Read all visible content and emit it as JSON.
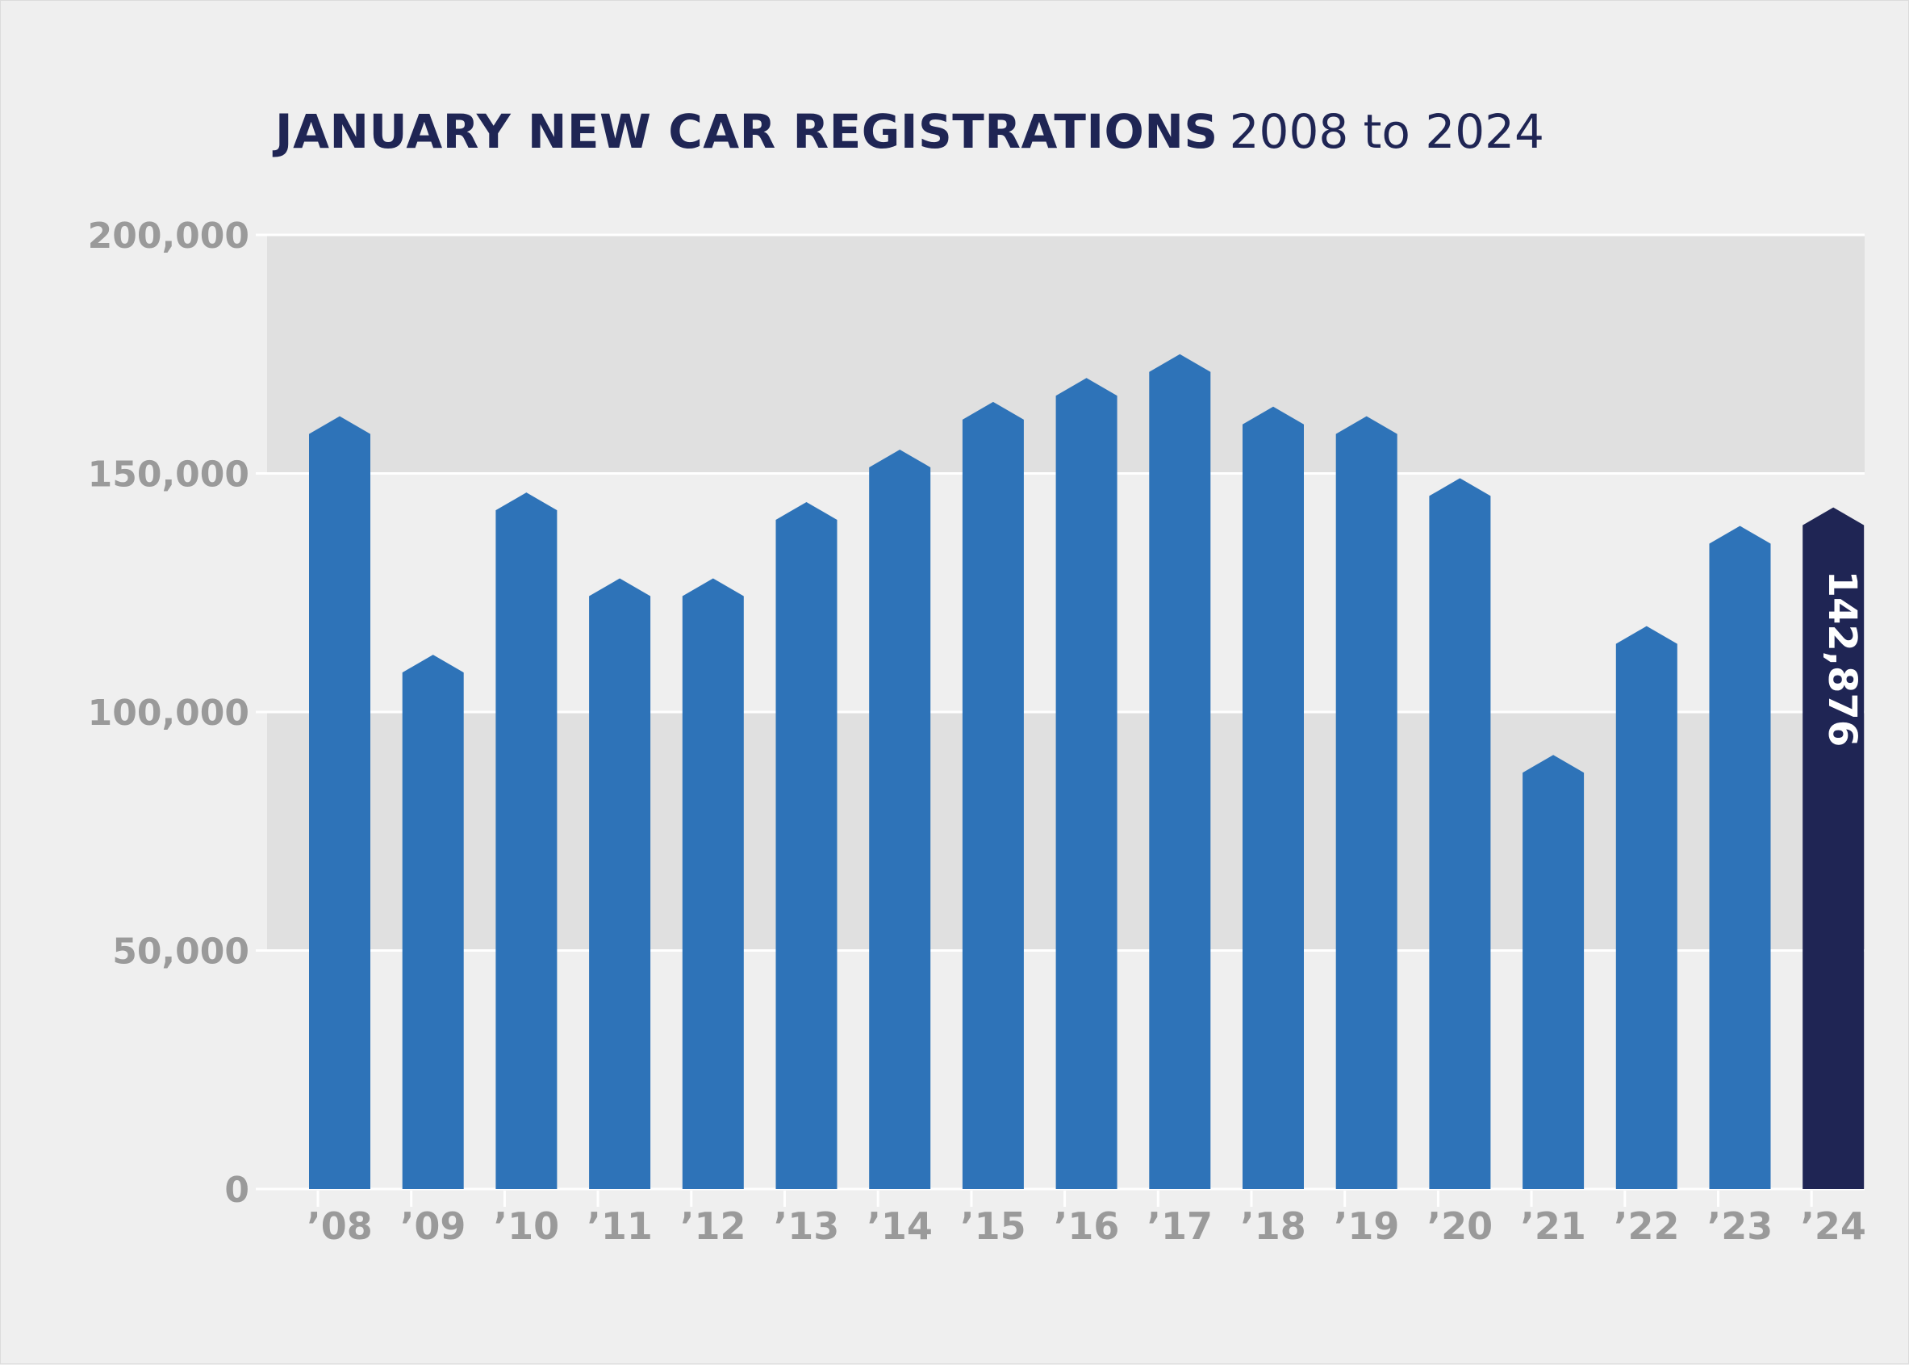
{
  "title": {
    "bold": "JANUARY NEW CAR REGISTRATIONS",
    "light": "2008 to 2024"
  },
  "colors": {
    "background": "#efefef",
    "band": "#e0e0e0",
    "gridline": "#ffffff",
    "bar": "#2e73b8",
    "highlight_bar": "#1f2554",
    "tick_text": "#9a9a9a",
    "title_text": "#1f2554"
  },
  "chart_data": {
    "type": "bar",
    "title": "JANUARY NEW CAR REGISTRATIONS 2008 to 2024",
    "xlabel": "",
    "ylabel": "",
    "categories": [
      "’08",
      "’09",
      "’10",
      "’11",
      "’12",
      "’13",
      "’14",
      "’15",
      "’16",
      "’17",
      "’18",
      "’19",
      "’20",
      "’21",
      "’22",
      "’23",
      "’24"
    ],
    "values": [
      162000,
      112000,
      146000,
      128000,
      128000,
      144000,
      155000,
      165000,
      170000,
      175000,
      164000,
      162000,
      149000,
      91000,
      118000,
      139000,
      142876
    ],
    "ylim": [
      0,
      200000
    ],
    "yticks": [
      0,
      50000,
      100000,
      150000,
      200000
    ],
    "ytick_labels": [
      "0",
      "50,000",
      "100,000",
      "150,000",
      "200,000"
    ],
    "shaded_bands": [
      [
        50000,
        100000
      ],
      [
        150000,
        200000
      ]
    ],
    "highlight": {
      "category": "’24",
      "label": "142,876"
    },
    "grid": true,
    "legend": "none"
  }
}
